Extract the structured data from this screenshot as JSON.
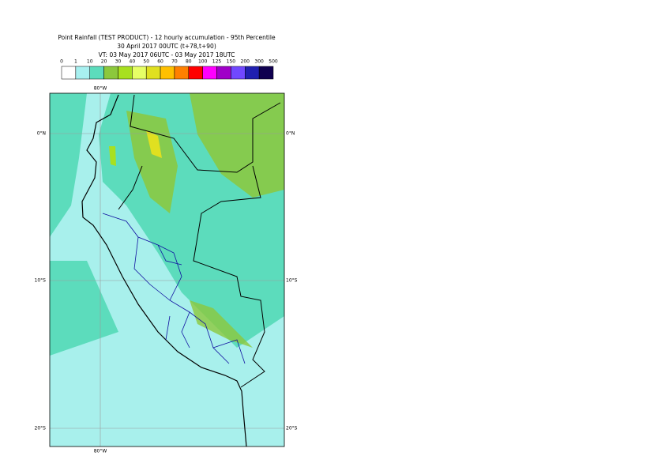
{
  "header": {
    "title": "Point Rainfall (TEST PRODUCT) - 12 hourly accumulation - 95th Percentile",
    "run": "30 April 2017 00UTC (t+78,t+90)",
    "validity": "VT: 03 May 2017 06UTC - 03 May 2017 18UTC"
  },
  "legend": {
    "thresholds": [
      0,
      1,
      10,
      20,
      30,
      40,
      50,
      60,
      70,
      80,
      100,
      125,
      150,
      200,
      300,
      500
    ],
    "colors": [
      "#ffffff",
      "#a8f0f0",
      "#5cdcbc",
      "#8cc83c",
      "#a8e020",
      "#e6ff66",
      "#e0e020",
      "#ffc000",
      "#ff8000",
      "#ff0000",
      "#ff00ff",
      "#a000c8",
      "#7048ff",
      "#2020b0",
      "#100050"
    ]
  },
  "map": {
    "lon_label": "80°W",
    "lat_labels": [
      "0°N",
      "10°S",
      "20°S"
    ]
  }
}
